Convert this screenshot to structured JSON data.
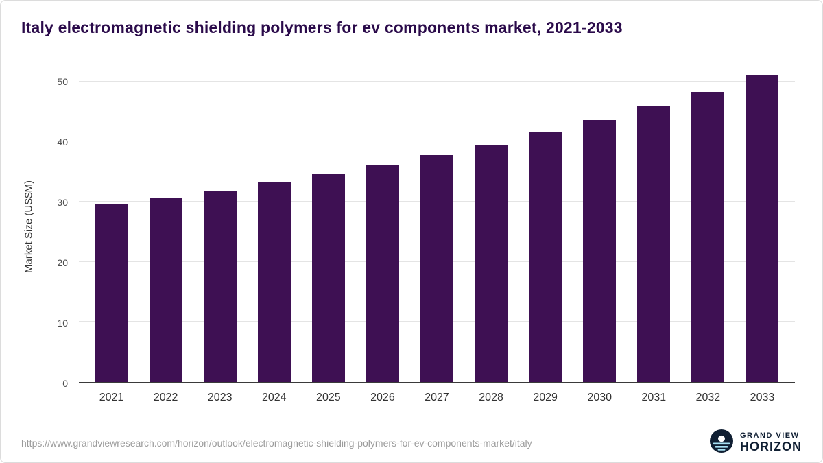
{
  "title": "Italy electromagnetic shielding polymers for ev components market, 2021-2033",
  "chart_data": {
    "type": "bar",
    "categories": [
      "2021",
      "2022",
      "2023",
      "2024",
      "2025",
      "2026",
      "2027",
      "2028",
      "2029",
      "2030",
      "2031",
      "2032",
      "2033"
    ],
    "values": [
      29.5,
      30.7,
      31.8,
      33.2,
      34.5,
      36.1,
      37.7,
      39.5,
      41.5,
      43.6,
      45.8,
      48.2,
      51.0
    ],
    "title": "Italy electromagnetic shielding polymers for ev components market, 2021-2033",
    "xlabel": "",
    "ylabel": "Market Size (US$M)",
    "ylim": [
      0,
      52
    ],
    "yticks": [
      0,
      10,
      20,
      30,
      40,
      50
    ],
    "grid": true,
    "legend": "none",
    "bar_color": "#3e1053"
  },
  "footer": {
    "source_url": "https://www.grandviewresearch.com/horizon/outlook/electromagnetic-shielding-polymers-for-ev-components-market/italy",
    "brand_line1": "GRAND VIEW",
    "brand_line2": "HORIZON"
  },
  "colors": {
    "title": "#2a0a4a",
    "bar": "#3e1053",
    "gridline": "#e4e4e4",
    "axis_line": "#3a3a3a",
    "tick_text": "#4d4d4d",
    "logo_navy": "#101f33",
    "logo_stripe": "#a9e2f5"
  }
}
